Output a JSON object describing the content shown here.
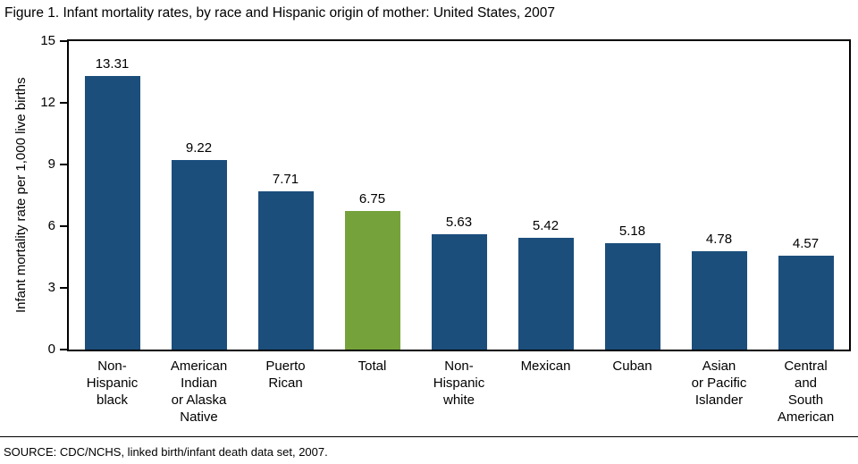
{
  "title": "Figure 1. Infant mortality rates, by race and Hispanic origin of mother: United States, 2007",
  "source": "SOURCE: CDC/NCHS, linked birth/infant death data set, 2007.",
  "chart_data": {
    "type": "bar",
    "title": "Figure 1. Infant mortality rates, by race and Hispanic origin of mother: United States, 2007",
    "categories": [
      "Non-Hispanic black",
      "American Indian or Alaska Native",
      "Puerto Rican",
      "Total",
      "Non-Hispanic white",
      "Mexican",
      "Cuban",
      "Asian or Pacific Islander",
      "Central and South American"
    ],
    "category_label_lines": [
      [
        "Non-",
        "Hispanic",
        "black"
      ],
      [
        "American",
        "Indian",
        "or Alaska",
        "Native"
      ],
      [
        "Puerto",
        "Rican"
      ],
      [
        "Total"
      ],
      [
        "Non-",
        "Hispanic",
        "white"
      ],
      [
        "Mexican"
      ],
      [
        "Cuban"
      ],
      [
        "Asian",
        "or Pacific",
        "Islander"
      ],
      [
        "Central",
        "and",
        "South",
        "American"
      ]
    ],
    "values": [
      13.31,
      9.22,
      7.71,
      6.75,
      5.63,
      5.42,
      5.18,
      4.78,
      4.57
    ],
    "value_labels": [
      "13.31",
      "9.22",
      "7.71",
      "6.75",
      "5.63",
      "5.42",
      "5.18",
      "4.78",
      "4.57"
    ],
    "xlabel": "",
    "ylabel": "Infant mortality rate per 1,000 live births",
    "ylim": [
      0,
      15
    ],
    "yticks": [
      0,
      3,
      6,
      9,
      12,
      15
    ],
    "grid": false,
    "legend": false,
    "bar_color": "#1c4e7c",
    "highlight_color": "#76a23c",
    "highlight_index": 3
  }
}
